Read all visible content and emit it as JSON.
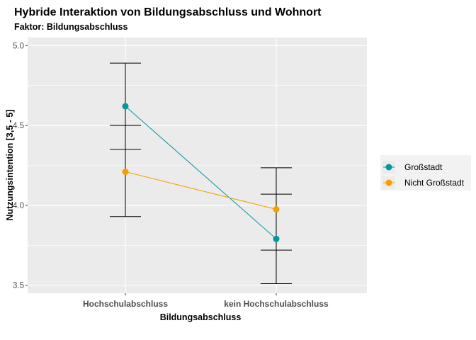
{
  "chart_data": {
    "type": "line",
    "title": "Hybride Interaktion von Bildungsabschluss und Wohnort",
    "subtitle": "Faktor: Bildungsabschluss",
    "xlabel": "Bildungsabschluss",
    "ylabel": "Nutzungsintention [3,5 - 5]",
    "categories": [
      "Hochschulabschluss",
      "kein Hochschulabschluss"
    ],
    "ylim": [
      3.45,
      5.05
    ],
    "yticks": [
      3.5,
      4.0,
      4.5,
      5.0
    ],
    "ytick_labels": [
      "3.5",
      "4.0",
      "4.5",
      "5.0"
    ],
    "grid": true,
    "legend_position": "right",
    "series": [
      {
        "name": "Großstadt",
        "color": "#00979D",
        "values": [
          4.62,
          3.79
        ],
        "error_low": [
          4.35,
          3.51
        ],
        "error_high": [
          4.89,
          4.07
        ]
      },
      {
        "name": "Nicht Großstadt",
        "color": "#F5A000",
        "values": [
          4.21,
          3.975
        ],
        "error_low": [
          3.93,
          3.72
        ],
        "error_high": [
          4.5,
          4.235
        ]
      }
    ]
  }
}
